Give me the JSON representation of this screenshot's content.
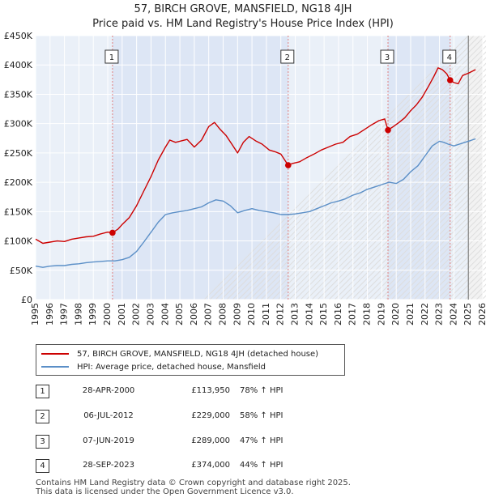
{
  "title_line1": "57, BIRCH GROVE, MANSFIELD, NG18 4JH",
  "title_line2": "Price paid vs. HM Land Registry's House Price Index (HPI)",
  "colors": {
    "property": "#cc0000",
    "hpi": "#5b8fc7",
    "shade": "#dde6f5",
    "grid": "#ffffff"
  },
  "legend": {
    "property_label": "57, BIRCH GROVE, MANSFIELD, NG18 4JH (detached house)",
    "hpi_label": "HPI: Average price, detached house, Mansfield"
  },
  "sales": [
    {
      "num": "1",
      "date": "28-APR-2000",
      "price": "£113,950",
      "hpi": "78% ↑ HPI"
    },
    {
      "num": "2",
      "date": "06-JUL-2012",
      "price": "£229,000",
      "hpi": "58% ↑ HPI"
    },
    {
      "num": "3",
      "date": "07-JUN-2019",
      "price": "£289,000",
      "hpi": "47% ↑ HPI"
    },
    {
      "num": "4",
      "date": "28-SEP-2023",
      "price": "£374,000",
      "hpi": "44% ↑ HPI"
    }
  ],
  "footer_line1": "Contains HM Land Registry data © Crown copyright and database right 2025.",
  "footer_line2": "This data is licensed under the Open Government Licence v3.0.",
  "chart_data": {
    "type": "line",
    "title": "Price paid vs. HM Land Registry's House Price Index (HPI)",
    "xlim": [
      1995,
      2026
    ],
    "ylim": [
      0,
      450000
    ],
    "y_ticks": [
      0,
      50000,
      100000,
      150000,
      200000,
      250000,
      300000,
      350000,
      400000,
      450000
    ],
    "y_tick_labels": [
      "£0",
      "£50K",
      "£100K",
      "£150K",
      "£200K",
      "£250K",
      "£300K",
      "£350K",
      "£400K",
      "£450K"
    ],
    "x_ticks": [
      1995,
      1996,
      1997,
      1998,
      1999,
      2000,
      2001,
      2002,
      2003,
      2004,
      2005,
      2006,
      2007,
      2008,
      2009,
      2010,
      2011,
      2012,
      2013,
      2014,
      2015,
      2016,
      2017,
      2018,
      2019,
      2020,
      2021,
      2022,
      2023,
      2024,
      2025,
      2026
    ],
    "x_tick_labels": [
      "1995",
      "1996",
      "1997",
      "1998",
      "1999",
      "2000",
      "2001",
      "2002",
      "2003",
      "2004",
      "2005",
      "2006",
      "2007",
      "2008",
      "2009",
      "2010",
      "2011",
      "2012",
      "2013",
      "2014",
      "2015",
      "2016",
      "2017",
      "2018",
      "2019",
      "2020",
      "2021",
      "2022",
      "2023",
      "2024",
      "2025",
      "2026"
    ],
    "forecast_start": 2025.0,
    "sale_markers": [
      {
        "label": "1",
        "x": 2000.33,
        "y": 113950
      },
      {
        "label": "2",
        "x": 2012.51,
        "y": 229000
      },
      {
        "label": "3",
        "x": 2019.43,
        "y": 289000
      },
      {
        "label": "4",
        "x": 2023.74,
        "y": 374000
      }
    ],
    "shaded_periods": [
      [
        2000.33,
        2012.51
      ],
      [
        2019.43,
        2023.74
      ]
    ],
    "series": [
      {
        "name": "57, BIRCH GROVE, MANSFIELD, NG18 4JH (detached house)",
        "x": [
          1995.0,
          1995.5,
          1996.0,
          1996.5,
          1997.0,
          1997.5,
          1998.0,
          1998.5,
          1999.0,
          1999.5,
          2000.0,
          2000.33,
          2000.7,
          2001.0,
          2001.5,
          2002.0,
          2002.5,
          2003.0,
          2003.5,
          2004.0,
          2004.3,
          2004.7,
          2005.0,
          2005.5,
          2006.0,
          2006.5,
          2007.0,
          2007.4,
          2007.8,
          2008.2,
          2008.6,
          2009.0,
          2009.4,
          2009.8,
          2010.3,
          2010.7,
          2011.2,
          2011.6,
          2012.0,
          2012.51,
          2012.8,
          2013.3,
          2013.8,
          2014.3,
          2014.8,
          2015.3,
          2015.8,
          2016.3,
          2016.8,
          2017.3,
          2017.8,
          2018.3,
          2018.8,
          2019.2,
          2019.43,
          2019.8,
          2020.2,
          2020.6,
          2021.0,
          2021.4,
          2021.8,
          2022.2,
          2022.6,
          2022.9,
          2023.2,
          2023.5,
          2023.74,
          2024.0,
          2024.3,
          2024.6,
          2025.0,
          2025.5
        ],
        "y": [
          103000,
          96000,
          98000,
          100000,
          99000,
          103000,
          105000,
          107000,
          108000,
          112000,
          115000,
          113950,
          120000,
          128000,
          140000,
          160000,
          185000,
          210000,
          238000,
          260000,
          272000,
          268000,
          270000,
          273000,
          260000,
          272000,
          295000,
          302000,
          290000,
          280000,
          265000,
          250000,
          268000,
          278000,
          270000,
          265000,
          255000,
          252000,
          248000,
          229000,
          232000,
          235000,
          242000,
          248000,
          255000,
          260000,
          265000,
          268000,
          278000,
          282000,
          290000,
          298000,
          305000,
          308000,
          289000,
          295000,
          302000,
          310000,
          322000,
          332000,
          345000,
          362000,
          380000,
          395000,
          392000,
          385000,
          374000,
          370000,
          368000,
          382000,
          386000,
          392000
        ]
      },
      {
        "name": "HPI: Average price, detached house, Mansfield",
        "x": [
          1995.0,
          1995.5,
          1996.0,
          1996.5,
          1997.0,
          1997.5,
          1998.0,
          1998.5,
          1999.0,
          1999.5,
          2000.0,
          2000.5,
          2001.0,
          2001.5,
          2002.0,
          2002.5,
          2003.0,
          2003.5,
          2004.0,
          2004.5,
          2005.0,
          2005.5,
          2006.0,
          2006.5,
          2007.0,
          2007.5,
          2008.0,
          2008.5,
          2009.0,
          2009.5,
          2010.0,
          2010.5,
          2011.0,
          2011.5,
          2012.0,
          2012.5,
          2013.0,
          2013.5,
          2014.0,
          2014.5,
          2015.0,
          2015.5,
          2016.0,
          2016.5,
          2017.0,
          2017.5,
          2018.0,
          2018.5,
          2019.0,
          2019.5,
          2020.0,
          2020.5,
          2021.0,
          2021.5,
          2022.0,
          2022.5,
          2023.0,
          2023.3,
          2023.6,
          2024.0,
          2024.5,
          2025.0,
          2025.5
        ],
        "y": [
          57000,
          55000,
          57000,
          58000,
          58000,
          60000,
          61000,
          63000,
          64000,
          65000,
          66000,
          66000,
          68000,
          72000,
          82000,
          98000,
          115000,
          132000,
          145000,
          148000,
          150000,
          152000,
          155000,
          158000,
          165000,
          170000,
          168000,
          160000,
          148000,
          152000,
          155000,
          152000,
          150000,
          148000,
          145000,
          145000,
          146000,
          148000,
          150000,
          155000,
          160000,
          165000,
          168000,
          172000,
          178000,
          182000,
          188000,
          192000,
          196000,
          200000,
          198000,
          205000,
          218000,
          228000,
          245000,
          262000,
          270000,
          268000,
          265000,
          262000,
          266000,
          270000,
          274000
        ]
      }
    ]
  }
}
